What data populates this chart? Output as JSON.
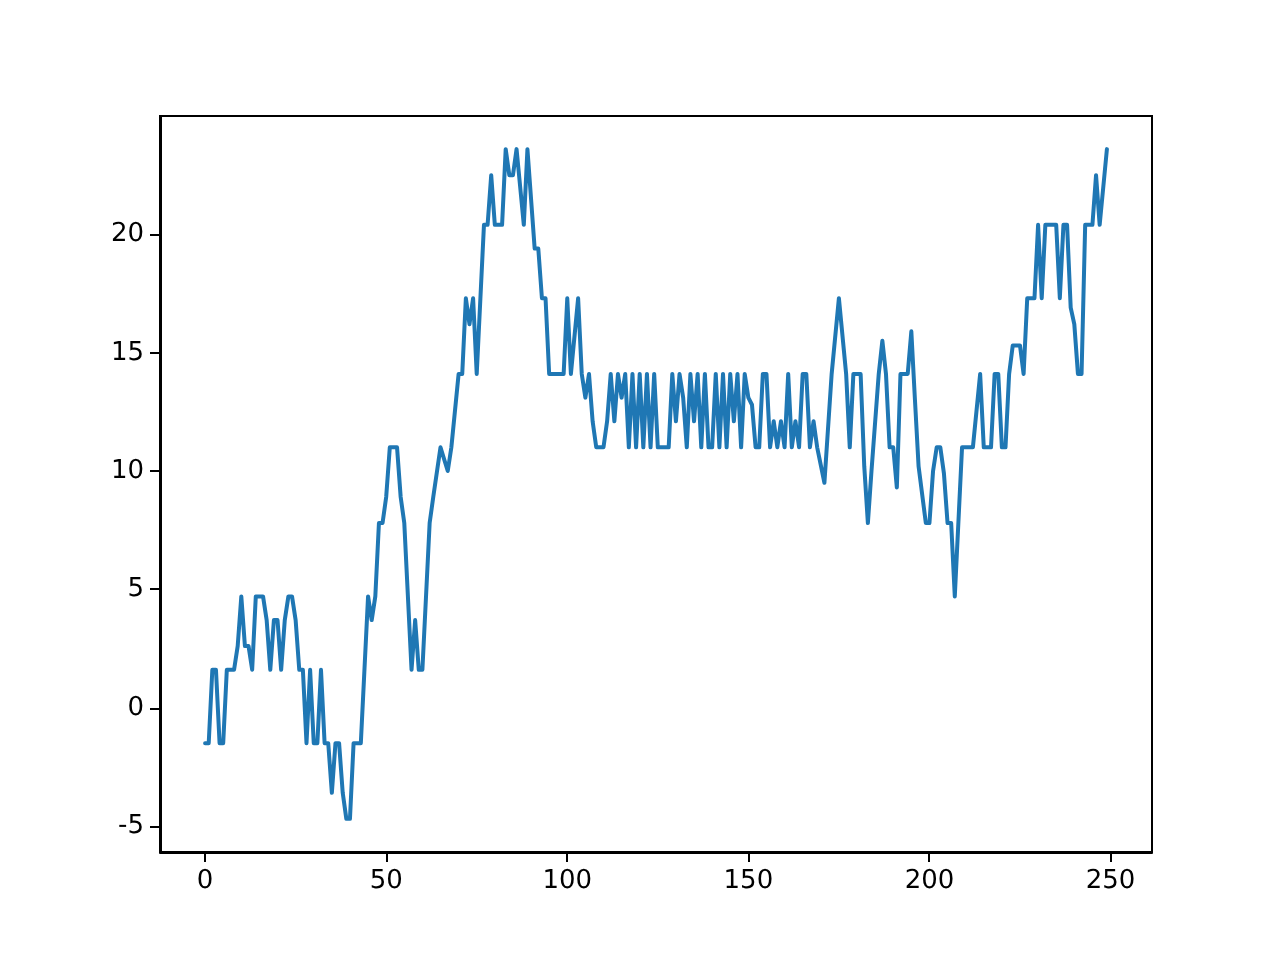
{
  "chart_data": {
    "type": "line",
    "color": "#1f77b4",
    "x": [
      0,
      1,
      2,
      3,
      4,
      5,
      6,
      8,
      9,
      10,
      11,
      12,
      13,
      14,
      16,
      17,
      18,
      19,
      20,
      21,
      22,
      23,
      24,
      25,
      26,
      27,
      28,
      29,
      30,
      31,
      32,
      33,
      34,
      35,
      36,
      37,
      38,
      39,
      40,
      41,
      43,
      45,
      46,
      47,
      48,
      49,
      50,
      51,
      53,
      54,
      55,
      57,
      58,
      59,
      60,
      62,
      63,
      65,
      67,
      68,
      70,
      71,
      72,
      73,
      74,
      75,
      77,
      78,
      79,
      80,
      82,
      83,
      84,
      85,
      86,
      88,
      89,
      91,
      92,
      93,
      94,
      95,
      99,
      100,
      101,
      103,
      104,
      105,
      106,
      107,
      108,
      110,
      111,
      112,
      113,
      114,
      115,
      116,
      117,
      118,
      119,
      120,
      121,
      122,
      123,
      124,
      125,
      126,
      128,
      129,
      130,
      131,
      132,
      133,
      134,
      135,
      136,
      137,
      138,
      139,
      140,
      141,
      142,
      143,
      144,
      145,
      146,
      147,
      148,
      149,
      150,
      151,
      152,
      153,
      154,
      155,
      156,
      157,
      158,
      159,
      160,
      161,
      162,
      163,
      164,
      165,
      166,
      167,
      168,
      169,
      171,
      173,
      175,
      177,
      178,
      179,
      181,
      182,
      183,
      184,
      186,
      187,
      188,
      189,
      190,
      191,
      192,
      194,
      195,
      196,
      197,
      199,
      200,
      201,
      202,
      203,
      204,
      205,
      206,
      207,
      209,
      212,
      214,
      215,
      217,
      218,
      219,
      220,
      221,
      222,
      223,
      225,
      226,
      227,
      229,
      230,
      231,
      232,
      235,
      236,
      237,
      238,
      239,
      240,
      241,
      242,
      243,
      245,
      246,
      247,
      249
    ],
    "values": [
      -1.5,
      -1.5,
      1.6,
      1.6,
      -1.5,
      -1.5,
      1.6,
      1.6,
      2.6,
      4.7,
      2.6,
      2.6,
      1.6,
      4.7,
      4.7,
      3.7,
      1.6,
      3.7,
      3.7,
      1.6,
      3.7,
      4.7,
      4.7,
      3.7,
      1.6,
      1.6,
      -1.5,
      1.6,
      -1.5,
      -1.5,
      1.6,
      -1.5,
      -1.5,
      -3.6,
      -1.5,
      -1.5,
      -3.6,
      -4.7,
      -4.7,
      -1.5,
      -1.5,
      4.7,
      3.7,
      4.7,
      7.8,
      7.8,
      8.9,
      11.0,
      11.0,
      8.9,
      7.8,
      1.6,
      3.7,
      1.6,
      1.6,
      7.8,
      8.9,
      11.0,
      10.0,
      11.0,
      14.1,
      14.1,
      17.3,
      16.2,
      17.3,
      14.1,
      20.4,
      20.4,
      22.5,
      20.4,
      20.4,
      23.6,
      22.5,
      22.5,
      23.6,
      20.4,
      23.6,
      19.4,
      19.4,
      17.3,
      17.3,
      14.1,
      14.1,
      17.3,
      14.1,
      17.3,
      14.1,
      13.1,
      14.1,
      12.1,
      11.0,
      11.0,
      12.1,
      14.1,
      12.1,
      14.1,
      13.1,
      14.1,
      11.0,
      14.1,
      11.0,
      14.1,
      11.0,
      14.1,
      11.0,
      14.1,
      11.0,
      11.0,
      11.0,
      14.1,
      12.1,
      14.1,
      13.1,
      11.0,
      14.1,
      12.1,
      14.1,
      11.0,
      14.1,
      11.0,
      11.0,
      14.1,
      11.0,
      14.1,
      11.0,
      14.1,
      12.1,
      14.1,
      11.0,
      14.1,
      13.1,
      12.8,
      11.0,
      11.0,
      14.1,
      14.1,
      11.0,
      12.1,
      11.0,
      12.1,
      11.0,
      14.1,
      11.0,
      12.1,
      11.0,
      14.1,
      14.1,
      11.0,
      12.1,
      11.0,
      9.5,
      14.1,
      17.3,
      14.1,
      11.0,
      14.1,
      14.1,
      10.2,
      7.8,
      10.0,
      14.1,
      15.5,
      14.1,
      11.0,
      11.0,
      9.3,
      14.1,
      14.1,
      15.9,
      13.0,
      10.2,
      7.8,
      7.8,
      10.0,
      11.0,
      11.0,
      9.9,
      7.8,
      7.8,
      4.7,
      11.0,
      11.0,
      14.1,
      11.0,
      11.0,
      14.1,
      14.1,
      11.0,
      11.0,
      14.1,
      15.3,
      15.3,
      14.1,
      17.3,
      17.3,
      20.4,
      17.3,
      20.4,
      20.4,
      17.3,
      20.4,
      20.4,
      16.9,
      16.2,
      14.1,
      14.1,
      20.4,
      20.4,
      22.5,
      20.4,
      23.6
    ],
    "xlim": [
      -12.45,
      261.45
    ],
    "ylim": [
      -6.1,
      25.0
    ],
    "xticks": [
      0,
      50,
      100,
      150,
      200,
      250
    ],
    "yticks": [
      -5,
      0,
      5,
      10,
      15,
      20
    ]
  }
}
